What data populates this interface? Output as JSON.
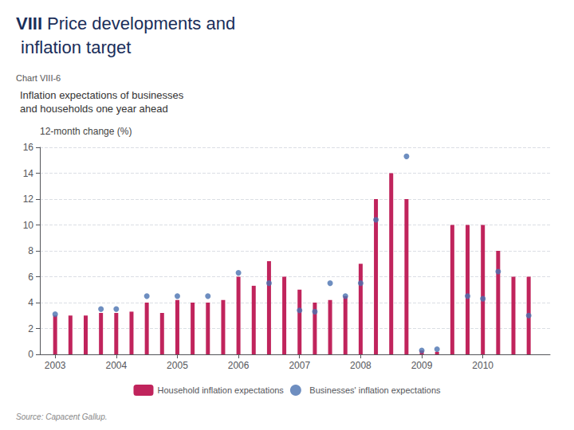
{
  "chart_data": {
    "type": "bar",
    "title": "Inflation expectations of businesses",
    "subtitle": "and households one year ahead",
    "annotations": [
      "VIII",
      " Price developments and",
      " inflation target",
      "Chart VIII-6",
      "Source: Capacent Gallup."
    ],
    "y_label": "12-month change (%)",
    "series": [
      {
        "name": "Household inflation expectations",
        "type": "bar",
        "color": "#c0245c",
        "x": [
          2003.0,
          2003.25,
          2003.5,
          2003.75,
          2004.0,
          2004.25,
          2004.5,
          2004.75,
          2005.0,
          2005.25,
          2005.5,
          2005.75,
          2006.0,
          2006.25,
          2006.5,
          2006.75,
          2007.0,
          2007.25,
          2007.5,
          2007.75,
          2008.0,
          2008.25,
          2008.5,
          2008.75,
          2009.0,
          2009.25,
          2009.5,
          2009.75,
          2010.0,
          2010.25,
          2010.5,
          2010.75
        ],
        "values": [
          3.0,
          3.0,
          3.0,
          3.2,
          3.2,
          3.3,
          4.0,
          3.2,
          4.2,
          4.0,
          4.0,
          4.2,
          6.0,
          5.3,
          7.2,
          6.0,
          5.0,
          4.0,
          4.2,
          4.5,
          7.0,
          12.0,
          14.0,
          12.0,
          0.3,
          0.2,
          10.0,
          10.0,
          10.0,
          8.0,
          6.0,
          6.0
        ]
      },
      {
        "name": "Businesses' inflation expectations",
        "type": "scatter",
        "color": "#4a72b0",
        "marker": "circle",
        "x": [
          2003.0,
          2003.75,
          2004.0,
          2004.5,
          2005.0,
          2005.5,
          2006.0,
          2006.5,
          2007.0,
          2007.25,
          2007.5,
          2007.75,
          2008.0,
          2008.25,
          2008.75,
          2009.0,
          2009.25,
          2009.75,
          2010.0,
          2010.25,
          2010.75
        ],
        "values": [
          3.1,
          3.5,
          3.5,
          4.5,
          4.5,
          4.5,
          6.3,
          5.5,
          3.4,
          3.3,
          5.5,
          4.5,
          5.5,
          10.4,
          15.3,
          0.3,
          0.4,
          4.5,
          4.3,
          6.4,
          3.0
        ]
      }
    ],
    "xlim": [
      2002.75,
      2011.1
    ],
    "xticks": [
      2003,
      2004,
      2005,
      2006,
      2007,
      2008,
      2009,
      2010
    ],
    "ylim": [
      0,
      16
    ],
    "yticks": [
      0,
      2,
      4,
      6,
      8,
      10,
      12,
      14,
      16
    ],
    "grid": true,
    "legend": "bottom"
  }
}
